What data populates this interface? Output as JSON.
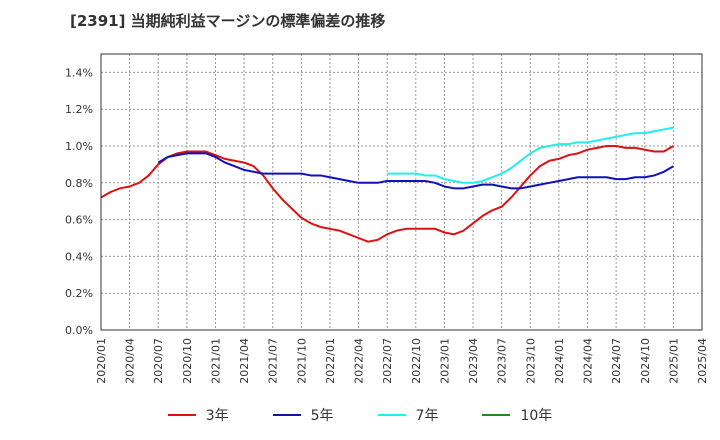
{
  "title": "[2391]  当期純利益マージンの標準偏差の推移",
  "chart_data": {
    "type": "line",
    "ylim": [
      0.0,
      0.015
    ],
    "y_ticks": [
      0.0,
      0.002,
      0.004,
      0.006,
      0.008,
      0.01,
      0.012,
      0.014
    ],
    "y_tick_labels": [
      "0.0%",
      "0.2%",
      "0.4%",
      "0.6%",
      "0.8%",
      "1.0%",
      "1.2%",
      "1.4%"
    ],
    "x_tick_labels": [
      "2020/01",
      "2020/04",
      "2020/07",
      "2020/10",
      "2021/01",
      "2021/04",
      "2021/07",
      "2021/10",
      "2022/01",
      "2022/04",
      "2022/07",
      "2022/10",
      "2023/01",
      "2023/04",
      "2023/07",
      "2023/10",
      "2024/01",
      "2024/04",
      "2024/07",
      "2024/10",
      "2025/01",
      "2025/04"
    ],
    "grid": true,
    "legend_position": "bottom",
    "series": [
      {
        "name": "3年",
        "color": "#dd1111",
        "points": [
          [
            "2020/01",
            0.0072
          ],
          [
            "2020/02",
            0.0075
          ],
          [
            "2020/03",
            0.0077
          ],
          [
            "2020/04",
            0.0078
          ],
          [
            "2020/05",
            0.008
          ],
          [
            "2020/06",
            0.0084
          ],
          [
            "2020/07",
            0.009
          ],
          [
            "2020/08",
            0.0094
          ],
          [
            "2020/09",
            0.0096
          ],
          [
            "2020/10",
            0.0097
          ],
          [
            "2020/11",
            0.0097
          ],
          [
            "2020/12",
            0.0097
          ],
          [
            "2021/01",
            0.0095
          ],
          [
            "2021/02",
            0.0093
          ],
          [
            "2021/03",
            0.0092
          ],
          [
            "2021/04",
            0.0091
          ],
          [
            "2021/05",
            0.0089
          ],
          [
            "2021/06",
            0.0084
          ],
          [
            "2021/07",
            0.0077
          ],
          [
            "2021/08",
            0.0071
          ],
          [
            "2021/09",
            0.0066
          ],
          [
            "2021/10",
            0.0061
          ],
          [
            "2021/11",
            0.0058
          ],
          [
            "2021/12",
            0.0056
          ],
          [
            "2022/01",
            0.0055
          ],
          [
            "2022/02",
            0.0054
          ],
          [
            "2022/03",
            0.0052
          ],
          [
            "2022/04",
            0.005
          ],
          [
            "2022/05",
            0.0048
          ],
          [
            "2022/06",
            0.0049
          ],
          [
            "2022/07",
            0.0052
          ],
          [
            "2022/08",
            0.0054
          ],
          [
            "2022/09",
            0.0055
          ],
          [
            "2022/10",
            0.0055
          ],
          [
            "2022/11",
            0.0055
          ],
          [
            "2022/12",
            0.0055
          ],
          [
            "2023/01",
            0.0053
          ],
          [
            "2023/02",
            0.0052
          ],
          [
            "2023/03",
            0.0054
          ],
          [
            "2023/04",
            0.0058
          ],
          [
            "2023/05",
            0.0062
          ],
          [
            "2023/06",
            0.0065
          ],
          [
            "2023/07",
            0.0067
          ],
          [
            "2023/08",
            0.0072
          ],
          [
            "2023/09",
            0.0078
          ],
          [
            "2023/10",
            0.0084
          ],
          [
            "2023/11",
            0.0089
          ],
          [
            "2023/12",
            0.0092
          ],
          [
            "2024/01",
            0.0093
          ],
          [
            "2024/02",
            0.0095
          ],
          [
            "2024/03",
            0.0096
          ],
          [
            "2024/04",
            0.0098
          ],
          [
            "2024/05",
            0.0099
          ],
          [
            "2024/06",
            0.01
          ],
          [
            "2024/07",
            0.01
          ],
          [
            "2024/08",
            0.0099
          ],
          [
            "2024/09",
            0.0099
          ],
          [
            "2024/10",
            0.0098
          ],
          [
            "2024/11",
            0.0097
          ],
          [
            "2024/12",
            0.0097
          ],
          [
            "2025/01",
            0.01
          ]
        ]
      },
      {
        "name": "5年",
        "color": "#1111bb",
        "points": [
          [
            "2020/07",
            0.0091
          ],
          [
            "2020/08",
            0.0094
          ],
          [
            "2020/09",
            0.0095
          ],
          [
            "2020/10",
            0.0096
          ],
          [
            "2020/11",
            0.0096
          ],
          [
            "2020/12",
            0.0096
          ],
          [
            "2021/01",
            0.0094
          ],
          [
            "2021/02",
            0.0091
          ],
          [
            "2021/03",
            0.0089
          ],
          [
            "2021/04",
            0.0087
          ],
          [
            "2021/05",
            0.0086
          ],
          [
            "2021/06",
            0.0085
          ],
          [
            "2021/07",
            0.0085
          ],
          [
            "2021/08",
            0.0085
          ],
          [
            "2021/09",
            0.0085
          ],
          [
            "2021/10",
            0.0085
          ],
          [
            "2021/11",
            0.0084
          ],
          [
            "2021/12",
            0.0084
          ],
          [
            "2022/01",
            0.0083
          ],
          [
            "2022/02",
            0.0082
          ],
          [
            "2022/03",
            0.0081
          ],
          [
            "2022/04",
            0.008
          ],
          [
            "2022/05",
            0.008
          ],
          [
            "2022/06",
            0.008
          ],
          [
            "2022/07",
            0.0081
          ],
          [
            "2022/08",
            0.0081
          ],
          [
            "2022/09",
            0.0081
          ],
          [
            "2022/10",
            0.0081
          ],
          [
            "2022/11",
            0.0081
          ],
          [
            "2022/12",
            0.008
          ],
          [
            "2023/01",
            0.0078
          ],
          [
            "2023/02",
            0.0077
          ],
          [
            "2023/03",
            0.0077
          ],
          [
            "2023/04",
            0.0078
          ],
          [
            "2023/05",
            0.0079
          ],
          [
            "2023/06",
            0.0079
          ],
          [
            "2023/07",
            0.0078
          ],
          [
            "2023/08",
            0.0077
          ],
          [
            "2023/09",
            0.0077
          ],
          [
            "2023/10",
            0.0078
          ],
          [
            "2023/11",
            0.0079
          ],
          [
            "2023/12",
            0.008
          ],
          [
            "2024/01",
            0.0081
          ],
          [
            "2024/02",
            0.0082
          ],
          [
            "2024/03",
            0.0083
          ],
          [
            "2024/04",
            0.0083
          ],
          [
            "2024/05",
            0.0083
          ],
          [
            "2024/06",
            0.0083
          ],
          [
            "2024/07",
            0.0082
          ],
          [
            "2024/08",
            0.0082
          ],
          [
            "2024/09",
            0.0083
          ],
          [
            "2024/10",
            0.0083
          ],
          [
            "2024/11",
            0.0084
          ],
          [
            "2024/12",
            0.0086
          ],
          [
            "2025/01",
            0.0089
          ]
        ]
      },
      {
        "name": "7年",
        "color": "#22eeee",
        "points": [
          [
            "2022/07",
            0.0085
          ],
          [
            "2022/08",
            0.0085
          ],
          [
            "2022/09",
            0.0085
          ],
          [
            "2022/10",
            0.0085
          ],
          [
            "2022/11",
            0.0084
          ],
          [
            "2022/12",
            0.0084
          ],
          [
            "2023/01",
            0.0082
          ],
          [
            "2023/02",
            0.0081
          ],
          [
            "2023/03",
            0.008
          ],
          [
            "2023/04",
            0.008
          ],
          [
            "2023/05",
            0.0081
          ],
          [
            "2023/06",
            0.0083
          ],
          [
            "2023/07",
            0.0085
          ],
          [
            "2023/08",
            0.0088
          ],
          [
            "2023/09",
            0.0092
          ],
          [
            "2023/10",
            0.0096
          ],
          [
            "2023/11",
            0.0099
          ],
          [
            "2023/12",
            0.01
          ],
          [
            "2024/01",
            0.0101
          ],
          [
            "2024/02",
            0.0101
          ],
          [
            "2024/03",
            0.0102
          ],
          [
            "2024/04",
            0.0102
          ],
          [
            "2024/05",
            0.0103
          ],
          [
            "2024/06",
            0.0104
          ],
          [
            "2024/07",
            0.0105
          ],
          [
            "2024/08",
            0.0106
          ],
          [
            "2024/09",
            0.0107
          ],
          [
            "2024/10",
            0.0107
          ],
          [
            "2024/11",
            0.0108
          ],
          [
            "2024/12",
            0.0109
          ],
          [
            "2025/01",
            0.011
          ]
        ]
      },
      {
        "name": "10年",
        "color": "#228822",
        "points": []
      }
    ]
  }
}
